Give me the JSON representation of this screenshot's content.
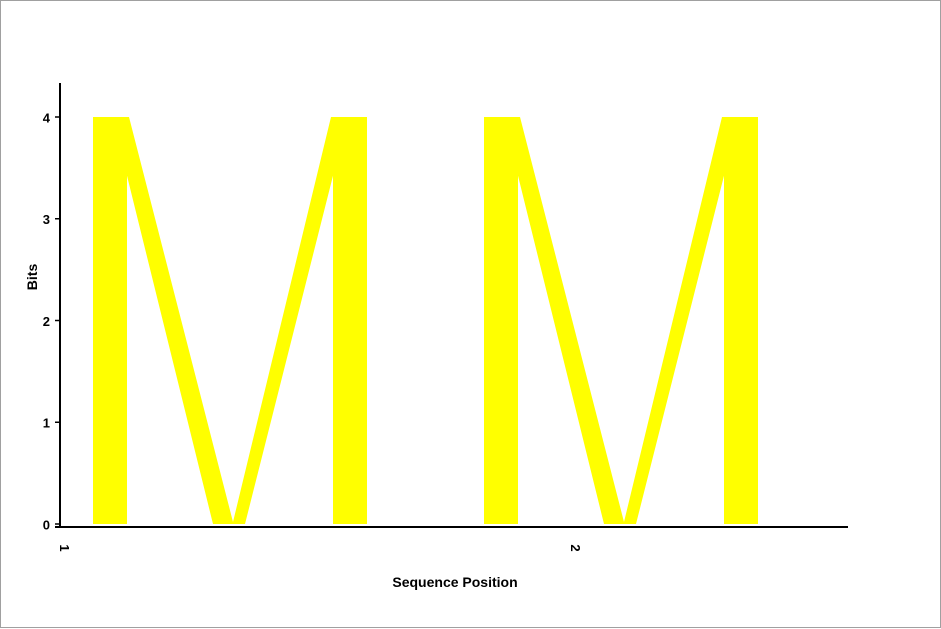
{
  "chart_data": {
    "type": "sequence-logo",
    "xlabel": "Sequence Position",
    "ylabel": "Bits",
    "ylim": [
      0,
      4.32
    ],
    "yticks": [
      0,
      1,
      2,
      3,
      4
    ],
    "positions": [
      {
        "label": "1",
        "letters": [
          {
            "letter": "M",
            "bits": 4.0,
            "color": "#ffff00"
          }
        ]
      },
      {
        "label": "2",
        "letters": [
          {
            "letter": "M",
            "bits": 4.0,
            "color": "#ffff00"
          }
        ]
      }
    ]
  }
}
